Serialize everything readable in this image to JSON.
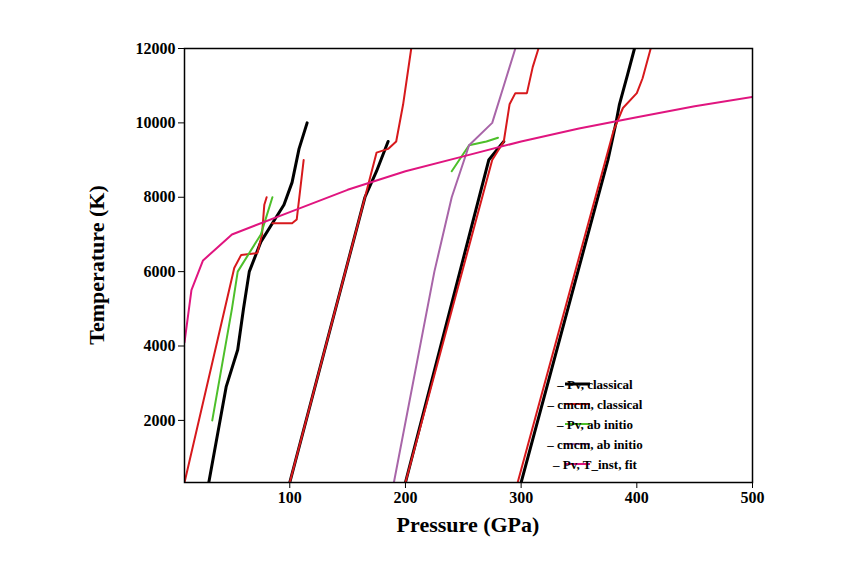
{
  "chart_data": {
    "type": "line",
    "x_label": "Pressure (GPa)",
    "y_label": "Temperature (K)",
    "xlim": [
      9,
      500
    ],
    "ylim": [
      330,
      12000
    ],
    "xticks": [
      100,
      200,
      300,
      400,
      500
    ],
    "yticks": [
      2000,
      4000,
      6000,
      8000,
      10000,
      12000
    ],
    "legend": "lower right",
    "series": [
      {
        "name": "– Pv, classical",
        "color": "#000000",
        "x": [
          30,
          45,
          55,
          60,
          65,
          75,
          85,
          95,
          102,
          108,
          115,
          null,
          100,
          165,
          175,
          185,
          null,
          200,
          272,
          285,
          null,
          300,
          375,
          382,
          385,
          392,
          398
        ],
        "values": [
          330,
          2900,
          3900,
          5000,
          6000,
          6800,
          7300,
          7800,
          8400,
          9300,
          10000,
          null,
          330,
          8000,
          8700,
          9500,
          null,
          330,
          9000,
          9500,
          null,
          330,
          9000,
          10000,
          10500,
          11300,
          12000
        ]
      },
      {
        "name": "– cmcm, classical",
        "color": "#d7191c",
        "x": [
          9,
          52,
          58,
          72,
          76,
          78,
          80,
          null,
          85,
          102,
          106,
          112,
          null,
          100,
          165,
          175,
          185,
          192,
          198,
          205,
          null,
          200,
          275,
          285,
          290,
          295,
          305,
          310,
          315,
          null,
          297,
          380,
          388,
          400,
          405,
          412
        ],
        "values": [
          330,
          6100,
          6450,
          6500,
          7000,
          7800,
          8000,
          null,
          7300,
          7300,
          7400,
          9000,
          null,
          330,
          8000,
          9200,
          9300,
          9500,
          10500,
          12000,
          null,
          330,
          9000,
          9500,
          10500,
          10800,
          10800,
          11500,
          12000,
          null,
          330,
          9800,
          10400,
          10800,
          11200,
          12000
        ]
      },
      {
        "name": "– Pv, ab initio",
        "color": "#4dbf2a",
        "x": [
          33,
          50,
          55,
          65,
          75,
          80,
          85,
          null,
          240,
          255,
          270,
          280
        ],
        "values": [
          2000,
          5000,
          6000,
          6500,
          7000,
          7500,
          8000,
          null,
          8700,
          9400,
          9500,
          9600
        ]
      },
      {
        "name": "– cmcm, ab initio",
        "color": "#a865a8",
        "x": [
          190,
          225,
          240,
          255,
          275,
          285,
          295
        ],
        "values": [
          330,
          6000,
          8000,
          9400,
          10000,
          11000,
          12000
        ]
      },
      {
        "name": "– Pv, T_inst, fit",
        "color": "#e0157f",
        "x": [
          9,
          15,
          25,
          50,
          100,
          150,
          200,
          250,
          300,
          350,
          400,
          450,
          500
        ],
        "values": [
          4100,
          5500,
          6300,
          7000,
          7600,
          8200,
          8700,
          9100,
          9500,
          9850,
          10150,
          10450,
          10700
        ]
      }
    ]
  }
}
